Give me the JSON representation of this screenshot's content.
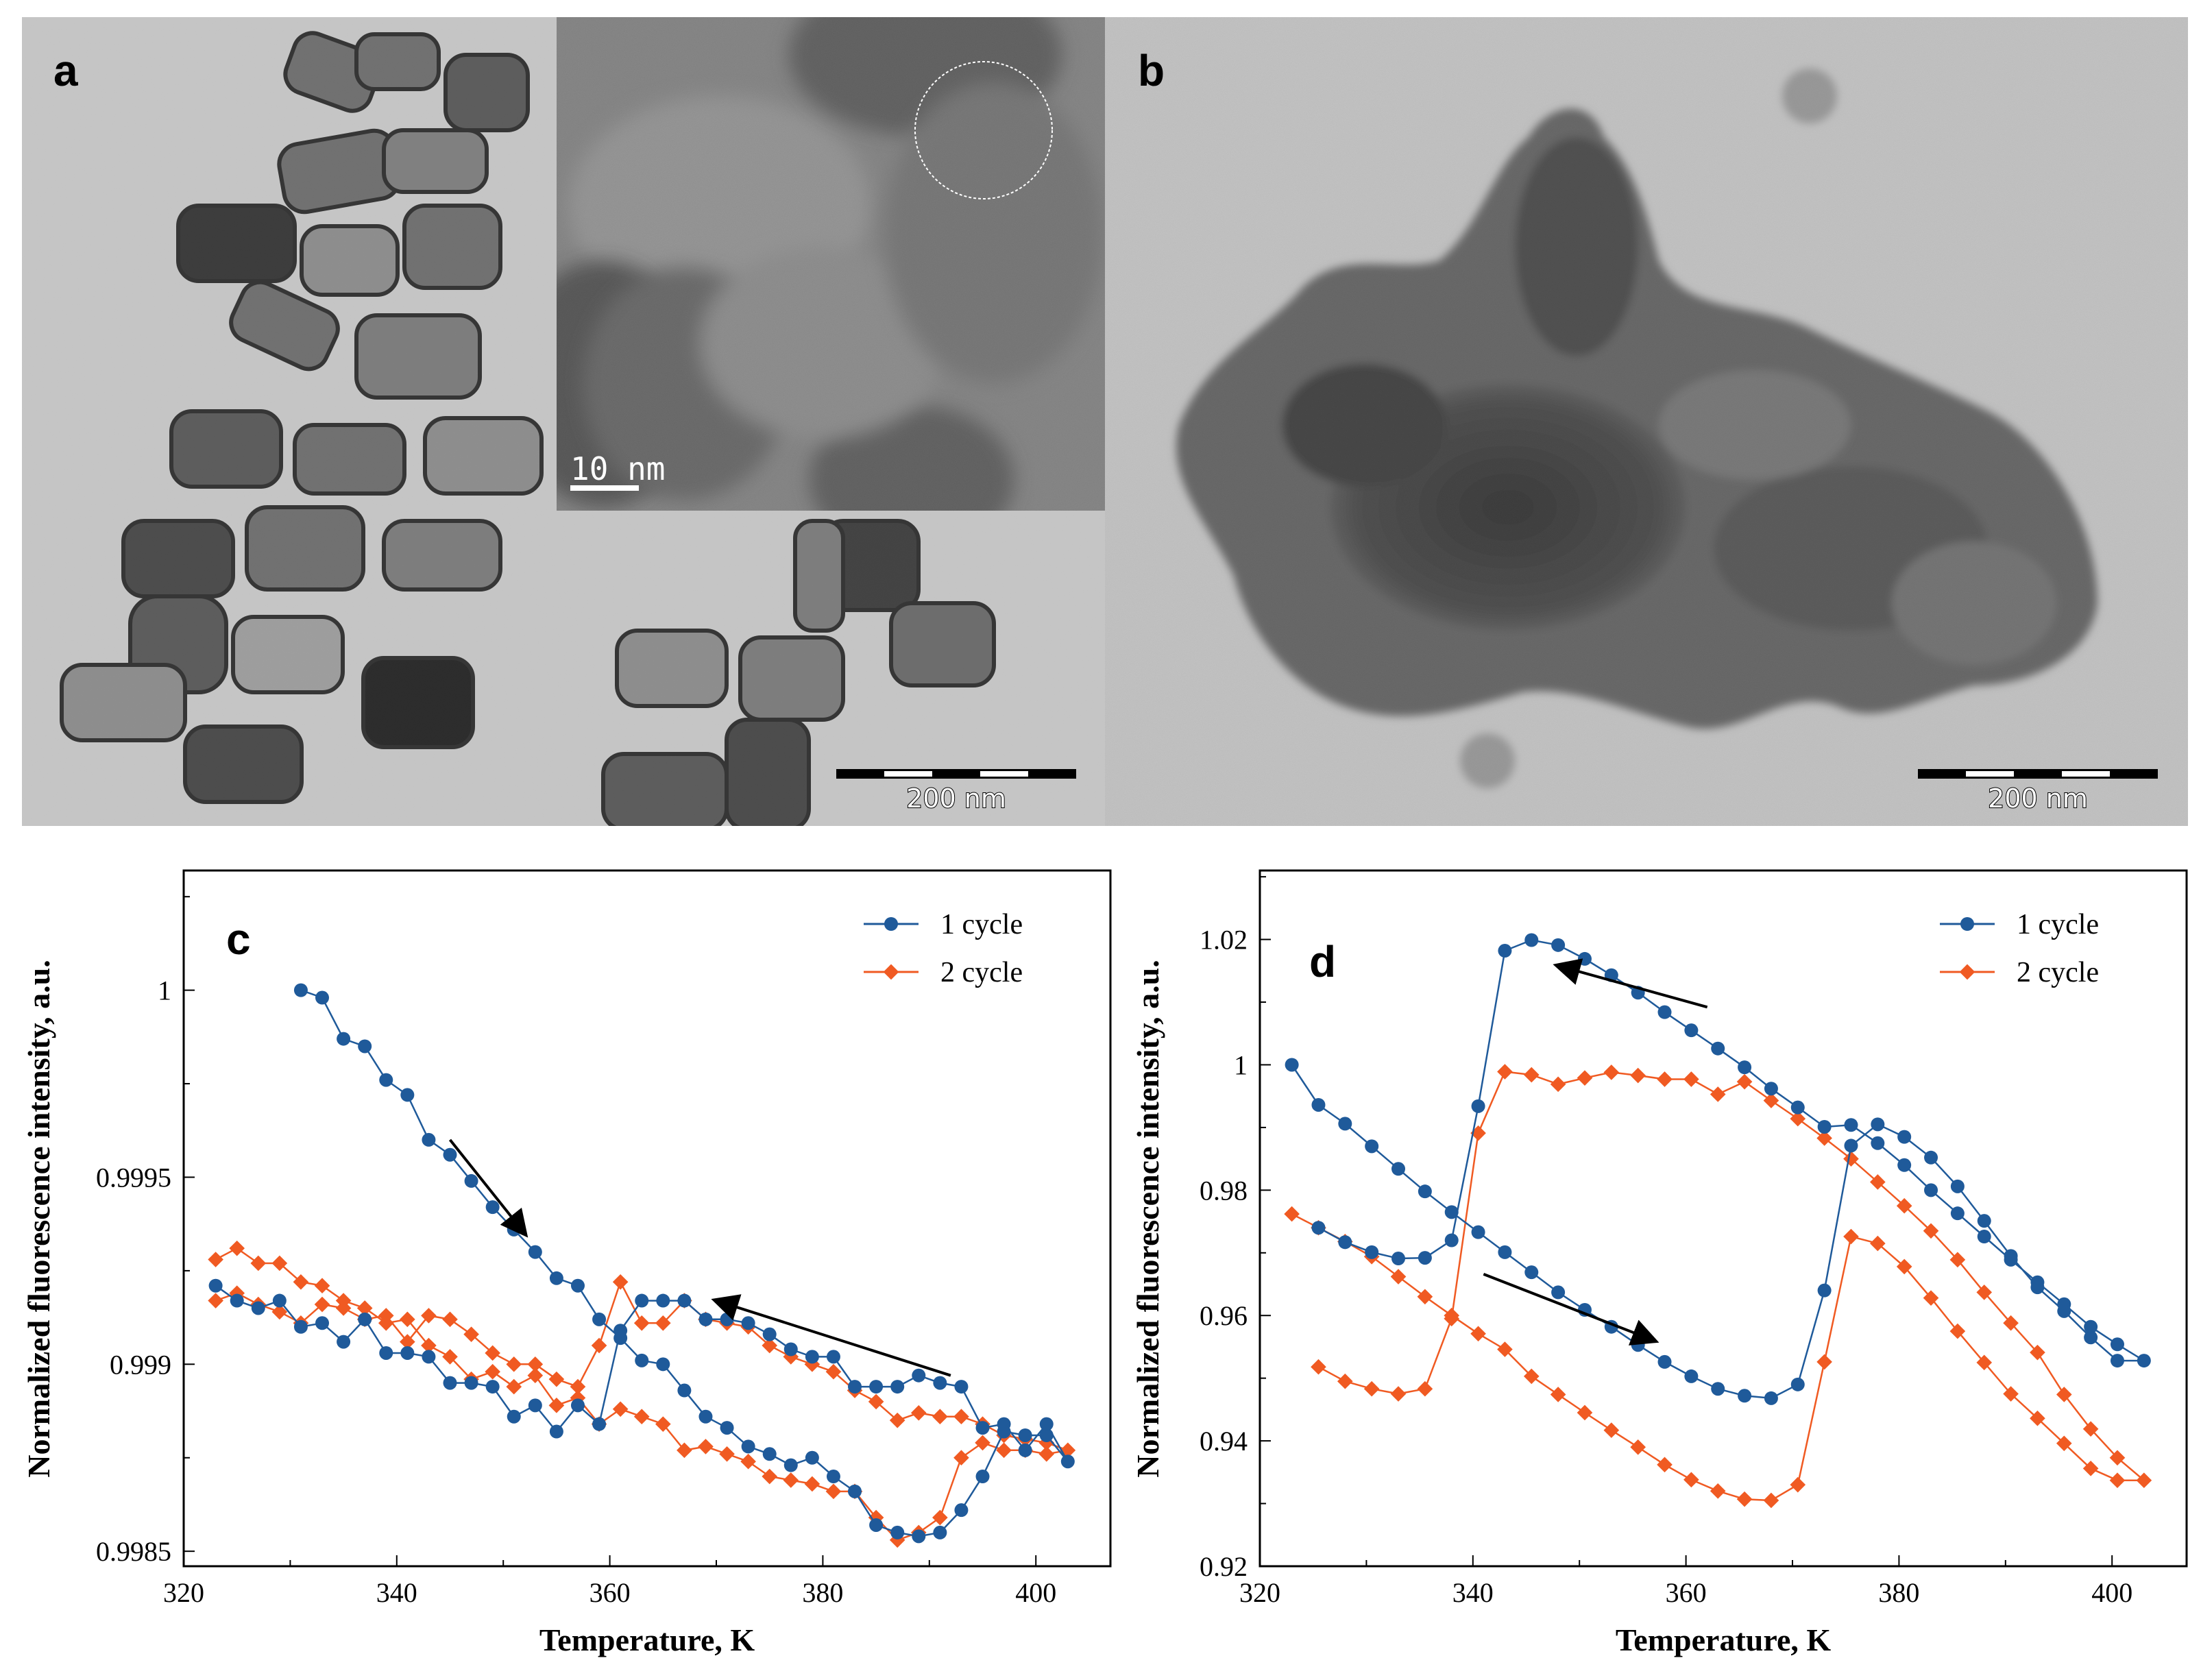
{
  "figure": {
    "panel_a": {
      "letter": "a",
      "scale_bar": "200 nm",
      "inset_scale_bar": "10 nm"
    },
    "panel_b": {
      "letter": "b",
      "scale_bar": "200 nm"
    }
  },
  "colors": {
    "cycle1": "#1f5a9a",
    "cycle2": "#f05a22"
  },
  "chart_data": [
    {
      "panel": "c",
      "type": "line",
      "xlabel": "Temperature, K",
      "ylabel": "Normalized fluorescence intensity, a.u.",
      "xlim": [
        320,
        407
      ],
      "ylim": [
        0.99846,
        1.00032
      ],
      "xticks": [
        320,
        340,
        360,
        380,
        400
      ],
      "yticks": [
        0.9985,
        0.999,
        0.9995,
        1
      ],
      "ytick_labels": [
        "0.9985",
        "0.999",
        "0.9995",
        "1"
      ],
      "legend": [
        "1 cycle",
        "2 cycle"
      ],
      "series": [
        {
          "name": "1 cycle",
          "marker": "circle",
          "x": [
            331,
            333,
            335,
            337,
            339,
            341,
            343,
            345,
            347,
            349,
            351,
            353,
            355,
            357,
            359,
            361,
            363,
            365,
            367,
            369,
            371,
            373,
            375,
            377,
            379,
            381,
            383,
            385,
            387,
            389,
            391,
            393,
            395,
            397,
            399,
            401,
            403,
            401,
            399,
            397,
            395,
            393,
            391,
            389,
            387,
            385,
            383,
            381,
            379,
            377,
            375,
            373,
            371,
            369,
            367,
            365,
            363,
            361,
            359,
            357,
            355,
            353,
            351,
            349,
            347,
            345,
            343,
            341,
            339,
            337,
            335,
            333,
            331,
            329,
            327,
            325,
            323
          ],
          "y": [
            1.0,
            0.99998,
            0.99987,
            0.99985,
            0.99976,
            0.99972,
            0.9996,
            0.99956,
            0.99949,
            0.99942,
            0.99936,
            0.9993,
            0.99923,
            0.99921,
            0.99912,
            0.99907,
            0.99901,
            0.999,
            0.99893,
            0.99886,
            0.99883,
            0.99878,
            0.99876,
            0.99873,
            0.99875,
            0.9987,
            0.99866,
            0.99857,
            0.99855,
            0.99854,
            0.99855,
            0.99861,
            0.9987,
            0.99882,
            0.99881,
            0.99881,
            0.99874,
            0.99884,
            0.99877,
            0.99884,
            0.99883,
            0.99894,
            0.99895,
            0.99897,
            0.99894,
            0.99894,
            0.99894,
            0.99902,
            0.99902,
            0.99904,
            0.99908,
            0.99911,
            0.99912,
            0.99912,
            0.99917,
            0.99917,
            0.99917,
            0.99909,
            0.99884,
            0.99889,
            0.99882,
            0.99889,
            0.99886,
            0.99894,
            0.99895,
            0.99895,
            0.99902,
            0.99903,
            0.99903,
            0.99912,
            0.99906,
            0.99911,
            0.9991,
            0.99917,
            0.99915,
            0.99917,
            0.99921
          ]
        },
        {
          "name": "2 cycle",
          "marker": "diamond",
          "x": [
            323,
            325,
            327,
            329,
            331,
            333,
            335,
            337,
            339,
            341,
            343,
            345,
            347,
            349,
            351,
            353,
            355,
            357,
            359,
            361,
            363,
            365,
            367,
            369,
            371,
            373,
            375,
            377,
            379,
            381,
            383,
            385,
            387,
            389,
            391,
            393,
            395,
            397,
            399,
            401,
            403,
            401,
            399,
            397,
            395,
            393,
            391,
            389,
            387,
            385,
            383,
            381,
            379,
            377,
            375,
            373,
            371,
            369,
            367,
            365,
            363,
            361,
            359,
            357,
            355,
            353,
            351,
            349,
            347,
            345,
            343,
            341,
            339,
            337,
            335,
            333,
            331,
            329,
            327,
            325,
            323
          ],
          "y": [
            0.99928,
            0.99931,
            0.99927,
            0.99927,
            0.99922,
            0.99921,
            0.99917,
            0.99915,
            0.99911,
            0.99912,
            0.99905,
            0.99902,
            0.99896,
            0.99898,
            0.99894,
            0.99897,
            0.99889,
            0.99891,
            0.99884,
            0.99888,
            0.99886,
            0.99884,
            0.99877,
            0.99878,
            0.99876,
            0.99874,
            0.9987,
            0.99869,
            0.99868,
            0.99866,
            0.99866,
            0.99859,
            0.99853,
            0.99855,
            0.99859,
            0.99875,
            0.99879,
            0.99877,
            0.99877,
            0.99876,
            0.99877,
            0.99879,
            0.9988,
            0.99881,
            0.99884,
            0.99886,
            0.99886,
            0.99887,
            0.99885,
            0.9989,
            0.99893,
            0.99898,
            0.999,
            0.99902,
            0.99905,
            0.9991,
            0.99911,
            0.99912,
            0.99917,
            0.99911,
            0.99911,
            0.99922,
            0.99905,
            0.99894,
            0.99896,
            0.999,
            0.999,
            0.99903,
            0.99908,
            0.99912,
            0.99913,
            0.99906,
            0.99913,
            0.99912,
            0.99915,
            0.99916,
            0.99911,
            0.99914,
            0.99916,
            0.99919,
            0.99917
          ]
        }
      ],
      "annotations": [
        {
          "text": "arrow",
          "from": [
            345,
            0.9996
          ],
          "to": [
            352,
            0.99935
          ]
        },
        {
          "text": "arrow",
          "from": [
            392,
            0.99897
          ],
          "to": [
            370,
            0.99917
          ]
        }
      ]
    },
    {
      "panel": "d",
      "type": "line",
      "xlabel": "Temperature, K",
      "ylabel": "Normalized fluorescence intensity, a.u.",
      "xlim": [
        320,
        407
      ],
      "ylim": [
        0.92,
        1.031
      ],
      "xticks": [
        320,
        340,
        360,
        380,
        400
      ],
      "yticks": [
        0.92,
        0.94,
        0.96,
        0.98,
        1,
        1.02
      ],
      "ytick_labels": [
        "0.92",
        "0.94",
        "0.96",
        "0.98",
        "1",
        "1.02"
      ],
      "legend": [
        "1 cycle",
        "2 cycle"
      ],
      "series": [
        {
          "name": "1 cycle",
          "marker": "circle",
          "x": [
            323,
            325.5,
            328,
            330.5,
            333,
            335.5,
            338,
            340.5,
            343,
            345.5,
            348,
            350.5,
            353,
            355.5,
            358,
            360.5,
            363,
            365.5,
            368,
            370.5,
            373,
            375.5,
            378,
            380.5,
            383,
            385.5,
            388,
            390.5,
            393,
            395.5,
            398,
            400.5,
            403,
            400.5,
            398,
            395.5,
            393,
            390.5,
            388,
            385.5,
            383,
            380.5,
            378,
            375.5,
            373,
            370.5,
            368,
            365.5,
            363,
            360.5,
            358,
            355.5,
            353,
            350.5,
            348,
            345.5,
            343,
            340.5,
            338,
            335.5,
            333,
            330.5,
            328,
            325.5
          ],
          "y": [
            1.0,
            0.9936,
            0.9906,
            0.987,
            0.9834,
            0.9798,
            0.9765,
            0.9733,
            0.9701,
            0.9669,
            0.9637,
            0.9609,
            0.9582,
            0.9553,
            0.9526,
            0.9503,
            0.9483,
            0.9472,
            0.9468,
            0.949,
            0.964,
            0.9871,
            0.9905,
            0.9885,
            0.9852,
            0.9806,
            0.9751,
            0.9695,
            0.9645,
            0.9607,
            0.9565,
            0.9528,
            0.9528,
            0.9554,
            0.9582,
            0.9618,
            0.9653,
            0.9689,
            0.9726,
            0.9763,
            0.98,
            0.984,
            0.9875,
            0.9904,
            0.9901,
            0.9932,
            0.9962,
            0.9996,
            1.0026,
            1.0055,
            1.0084,
            1.0115,
            1.0143,
            1.0169,
            1.0191,
            1.0199,
            1.0182,
            0.9934,
            0.972,
            0.9692,
            0.9691,
            0.9701,
            0.9717,
            0.974
          ]
        },
        {
          "name": "2 cycle",
          "marker": "diamond",
          "x": [
            323,
            325.5,
            328,
            330.5,
            333,
            335.5,
            338,
            340.5,
            343,
            345.5,
            348,
            350.5,
            353,
            355.5,
            358,
            360.5,
            363,
            365.5,
            368,
            370.5,
            373,
            375.5,
            378,
            380.5,
            383,
            385.5,
            388,
            390.5,
            393,
            395.5,
            398,
            400.5,
            403,
            400.5,
            398,
            395.5,
            393,
            390.5,
            388,
            385.5,
            383,
            380.5,
            378,
            375.5,
            373,
            370.5,
            368,
            365.5,
            363,
            360.5,
            358,
            355.5,
            353,
            350.5,
            348,
            345.5,
            343,
            340.5,
            338,
            335.5,
            333,
            330.5,
            328,
            325.5
          ],
          "y": [
            0.9762,
            0.974,
            0.9718,
            0.9694,
            0.9662,
            0.963,
            0.96,
            0.9571,
            0.9546,
            0.9503,
            0.9474,
            0.9445,
            0.9417,
            0.939,
            0.9362,
            0.9338,
            0.932,
            0.9307,
            0.9305,
            0.933,
            0.9526,
            0.9726,
            0.9715,
            0.9678,
            0.9628,
            0.9575,
            0.9525,
            0.9475,
            0.9436,
            0.9396,
            0.9356,
            0.9337,
            0.9337,
            0.9373,
            0.9419,
            0.9474,
            0.9541,
            0.9588,
            0.9637,
            0.9689,
            0.9735,
            0.9775,
            0.9813,
            0.985,
            0.9883,
            0.9914,
            0.9943,
            0.9973,
            0.9953,
            0.9977,
            0.9977,
            0.9983,
            0.9988,
            0.9979,
            0.9969,
            0.9984,
            0.9989,
            0.9891,
            0.9595,
            0.9483,
            0.9475,
            0.9483,
            0.9495,
            0.9518
          ]
        }
      ],
      "annotations": [
        {
          "text": "arrow",
          "from": [
            362,
            1.0092
          ],
          "to": [
            348,
            1.0158
          ]
        },
        {
          "text": "arrow",
          "from": [
            341,
            0.9666
          ],
          "to": [
            357,
            0.956
          ]
        }
      ]
    }
  ]
}
